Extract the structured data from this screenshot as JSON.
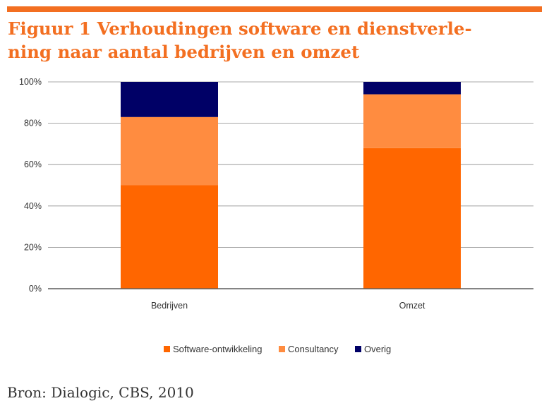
{
  "title": "Figuur 1 Verhoudingen software en dienstverle-ning naar aantal bedrijven en omzet",
  "title_lines": [
    "Figuur 1 Verhoudingen software en dienstverle-",
    "ning naar aantal bedrijven en omzet"
  ],
  "source": "Bron: Dialogic, CBS, 2010",
  "colors": {
    "accent": "#f36f21",
    "software": "#ff6600",
    "consultancy": "#ff8c40",
    "overig": "#000066"
  },
  "chart_data": {
    "type": "bar",
    "stacked": true,
    "percent": true,
    "categories": [
      "Bedrijven",
      "Omzet"
    ],
    "series": [
      {
        "name": "Software-ontwikkeling",
        "values": [
          50,
          68
        ],
        "color": "#ff6600"
      },
      {
        "name": "Consultancy",
        "values": [
          33,
          26
        ],
        "color": "#ff8c40"
      },
      {
        "name": "Overig",
        "values": [
          17,
          6
        ],
        "color": "#000066"
      }
    ],
    "yticks": [
      "0%",
      "20%",
      "40%",
      "60%",
      "80%",
      "100%"
    ],
    "ylim": [
      0,
      100
    ],
    "grid": true,
    "legend": "bottom",
    "xlabel": "",
    "ylabel": ""
  }
}
